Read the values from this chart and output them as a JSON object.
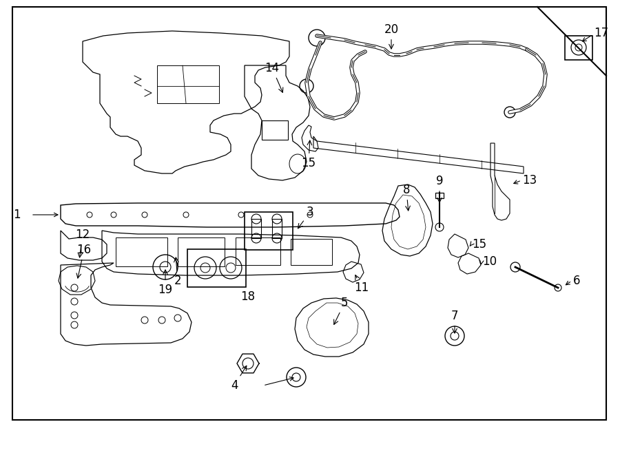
{
  "bg_color": "#ffffff",
  "line_color": "#000000",
  "fig_width": 9.0,
  "fig_height": 6.61,
  "fontsize_labels": 12
}
